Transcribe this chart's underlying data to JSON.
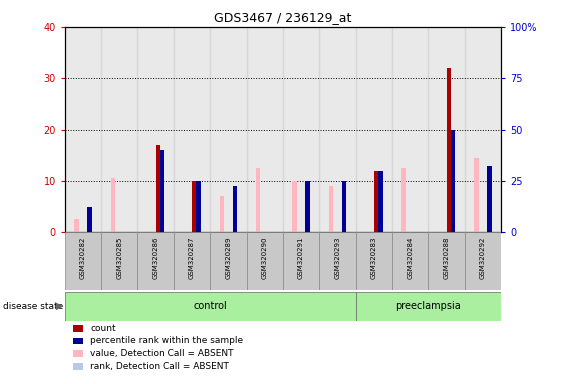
{
  "title": "GDS3467 / 236129_at",
  "samples": [
    "GSM320282",
    "GSM320285",
    "GSM320286",
    "GSM320287",
    "GSM320289",
    "GSM320290",
    "GSM320291",
    "GSM320293",
    "GSM320283",
    "GSM320284",
    "GSM320288",
    "GSM320292"
  ],
  "disease_state": [
    "control",
    "control",
    "control",
    "control",
    "control",
    "control",
    "control",
    "control",
    "preeclampsia",
    "preeclampsia",
    "preeclampsia",
    "preeclampsia"
  ],
  "count": [
    0,
    0,
    17,
    10,
    0,
    0,
    0,
    0,
    12,
    0,
    32,
    0
  ],
  "percentile_rank": [
    5,
    0,
    16,
    10,
    9,
    0,
    10,
    10,
    12,
    0,
    20,
    13
  ],
  "value_absent": [
    2.5,
    10.5,
    0,
    0,
    7,
    12.5,
    10,
    9,
    0,
    12.5,
    0,
    14.5
  ],
  "rank_absent": [
    0,
    0,
    0,
    0,
    0,
    0,
    0,
    0,
    0,
    0,
    0,
    0
  ],
  "ylim_left": [
    0,
    40
  ],
  "ylim_right": [
    0,
    100
  ],
  "yticks_left": [
    0,
    10,
    20,
    30,
    40
  ],
  "yticks_right": [
    0,
    25,
    50,
    75,
    100
  ],
  "color_count": "#AA0000",
  "color_percentile": "#000099",
  "color_value_absent": "#FFB6C1",
  "color_rank_absent": "#B8C8E8",
  "bar_width": 0.12,
  "control_color": "#AAEEA0",
  "preeclampsia_color": "#AAEEA0",
  "label_color_left": "#CC0000",
  "label_color_right": "#0000CC",
  "bg_color": "#FFFFFF",
  "plot_bg": "#FFFFFF"
}
